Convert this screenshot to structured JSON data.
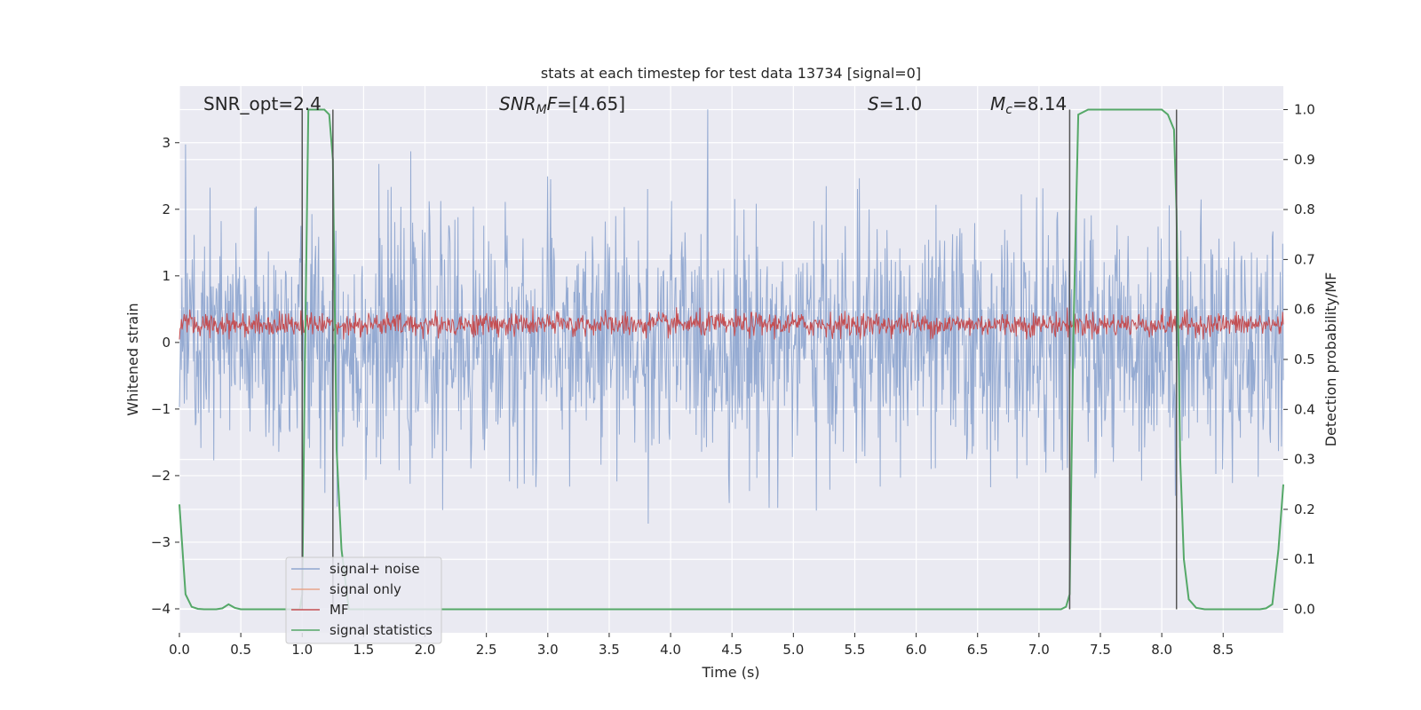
{
  "chart_data": {
    "type": "line",
    "title": "stats at each timestep for test data 13734 [signal=0]",
    "xlabel": "Time (s)",
    "ylabel": "Whitened strain",
    "y2label": "Detection probability/MF",
    "xlim": [
      0.0,
      8.99
    ],
    "ylim": [
      -4.36,
      3.85
    ],
    "y2lim": [
      -0.047,
      1.047
    ],
    "xticks": [
      "0.0",
      "0.5",
      "1.0",
      "1.5",
      "2.0",
      "2.5",
      "3.0",
      "3.5",
      "4.0",
      "4.5",
      "5.0",
      "5.5",
      "6.0",
      "6.5",
      "7.0",
      "7.5",
      "8.0",
      "8.5"
    ],
    "xtick_values": [
      0.0,
      0.5,
      1.0,
      1.5,
      2.0,
      2.5,
      3.0,
      3.5,
      4.0,
      4.5,
      5.0,
      5.5,
      6.0,
      6.5,
      7.0,
      7.5,
      8.0,
      8.5
    ],
    "yticks": [
      "−4",
      "−3",
      "−2",
      "−1",
      "0",
      "1",
      "2",
      "3"
    ],
    "ytick_values": [
      -4,
      -3,
      -2,
      -1,
      0,
      1,
      2,
      3
    ],
    "y2ticks": [
      "0.0",
      "0.1",
      "0.2",
      "0.3",
      "0.4",
      "0.5",
      "0.6",
      "0.7",
      "0.8",
      "0.9",
      "1.0"
    ],
    "y2tick_values": [
      0.0,
      0.1,
      0.2,
      0.3,
      0.4,
      0.5,
      0.6,
      0.7,
      0.8,
      0.9,
      1.0
    ],
    "grid": true,
    "legend_position": "bottom-left",
    "annotations": [
      {
        "text": "SNR_opt=2.4",
        "x": 0.19
      },
      {
        "text": "SNR_MF=[4.65]",
        "x": 2.59
      },
      {
        "text": "S=1.0",
        "x": 5.6
      },
      {
        "text": "M_c=8.14",
        "x": 6.6
      }
    ],
    "vertical_lines": [
      1.0,
      1.25,
      7.25,
      8.12
    ],
    "series": [
      {
        "name": "signal+ noise",
        "color": "#8FA6D0",
        "noise_std": 0.9,
        "peak_range": [
          -4.0,
          3.5
        ]
      },
      {
        "name": "signal only",
        "color": "#E8A48A",
        "values": []
      },
      {
        "name": "MF",
        "color": "#C44E52",
        "mean_y2": 0.57,
        "range_y2": [
          0.54,
          0.63
        ]
      },
      {
        "name": "signal statistics",
        "color": "#55A868",
        "x": [
          0.0,
          0.05,
          0.1,
          0.15,
          0.2,
          0.3,
          0.35,
          0.4,
          0.45,
          0.5,
          0.6,
          0.8,
          0.9,
          0.98,
          1.0,
          1.02,
          1.05,
          1.08,
          1.12,
          1.18,
          1.22,
          1.25,
          1.28,
          1.32,
          1.38,
          1.5,
          2.0,
          3.0,
          4.0,
          5.0,
          6.0,
          7.0,
          7.18,
          7.22,
          7.25,
          7.28,
          7.32,
          7.4,
          7.6,
          7.8,
          7.95,
          8.0,
          8.05,
          8.1,
          8.12,
          8.15,
          8.18,
          8.22,
          8.28,
          8.35,
          8.5,
          8.7,
          8.8,
          8.85,
          8.9,
          8.95,
          8.99
        ],
        "y": [
          0.21,
          0.03,
          0.005,
          0.001,
          0.0,
          0.0,
          0.002,
          0.01,
          0.003,
          0.0,
          0.0,
          0.0,
          0.0,
          0.0,
          0.03,
          0.45,
          1.0,
          1.0,
          1.0,
          1.0,
          0.99,
          0.9,
          0.32,
          0.12,
          0.0,
          0.0,
          0.0,
          0.0,
          0.0,
          0.0,
          0.0,
          0.0,
          0.0,
          0.005,
          0.03,
          0.55,
          0.99,
          1.0,
          1.0,
          1.0,
          1.0,
          1.0,
          0.99,
          0.96,
          0.8,
          0.3,
          0.1,
          0.02,
          0.003,
          0.0,
          0.0,
          0.0,
          0.0,
          0.002,
          0.01,
          0.12,
          0.25
        ]
      }
    ]
  }
}
